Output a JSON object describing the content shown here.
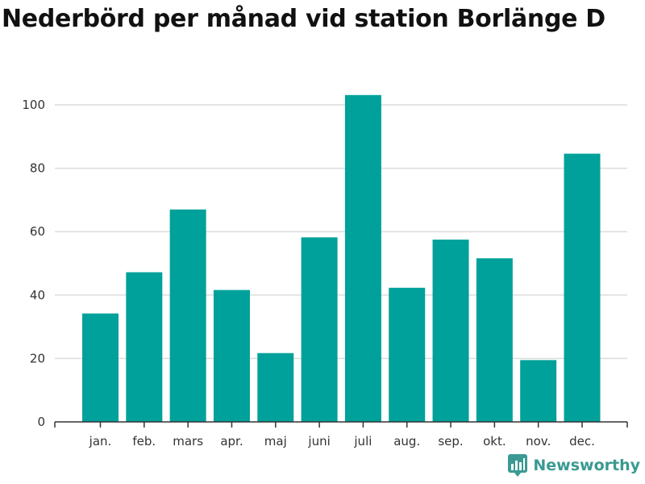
{
  "title": "Nederbörd per månad vid station Borlänge D",
  "brand": {
    "name": "Newsworthy",
    "icon": "newsworthy-logo-icon",
    "color": "#3a9a92"
  },
  "chart_data": {
    "type": "bar",
    "categories": [
      "jan.",
      "feb.",
      "mars",
      "apr.",
      "maj",
      "juni",
      "juli",
      "aug.",
      "sep.",
      "okt.",
      "nov.",
      "dec."
    ],
    "values": [
      34.2,
      47.2,
      67.0,
      41.6,
      21.7,
      58.2,
      103.1,
      42.3,
      57.5,
      51.6,
      19.5,
      84.6
    ],
    "ylim": [
      0,
      110
    ],
    "yticks": [
      0,
      20,
      40,
      60,
      80,
      100
    ],
    "grid": true,
    "bar_color": "#00a19a",
    "xlabel": "",
    "ylabel": ""
  }
}
